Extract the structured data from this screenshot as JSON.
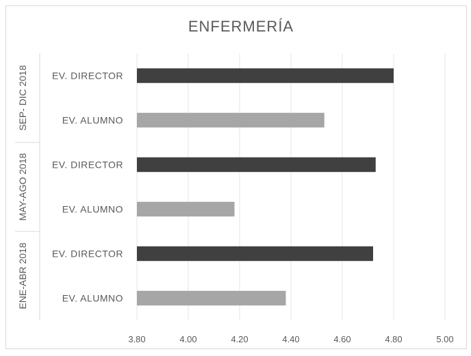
{
  "chart_data": {
    "type": "bar",
    "orientation": "horizontal",
    "title": "ENFERMERÍA",
    "xlabel": "",
    "ylabel": "",
    "xlim": [
      3.8,
      5.0
    ],
    "ticks": [
      "3.80",
      "4.00",
      "4.20",
      "4.40",
      "4.60",
      "4.80",
      "5.00"
    ],
    "tick_values": [
      3.8,
      4.0,
      4.2,
      4.4,
      4.6,
      4.8,
      5.0
    ],
    "grid": true,
    "legend": "none",
    "groups": [
      {
        "label": "SEP- DIC 2018",
        "bars": [
          {
            "category": "EV. DIRECTOR",
            "value": 4.8,
            "color": "#404040"
          },
          {
            "category": "EV. ALUMNO",
            "value": 4.53,
            "color": "#a6a6a6"
          }
        ]
      },
      {
        "label": "MAY-AGO 2018",
        "bars": [
          {
            "category": "EV. DIRECTOR",
            "value": 4.73,
            "color": "#404040"
          },
          {
            "category": "EV. ALUMNO",
            "value": 4.18,
            "color": "#a6a6a6"
          }
        ]
      },
      {
        "label": "ENE-ABR 2018",
        "bars": [
          {
            "category": "EV. DIRECTOR",
            "value": 4.72,
            "color": "#404040"
          },
          {
            "category": "EV. ALUMNO",
            "value": 4.38,
            "color": "#a6a6a6"
          }
        ]
      }
    ]
  }
}
